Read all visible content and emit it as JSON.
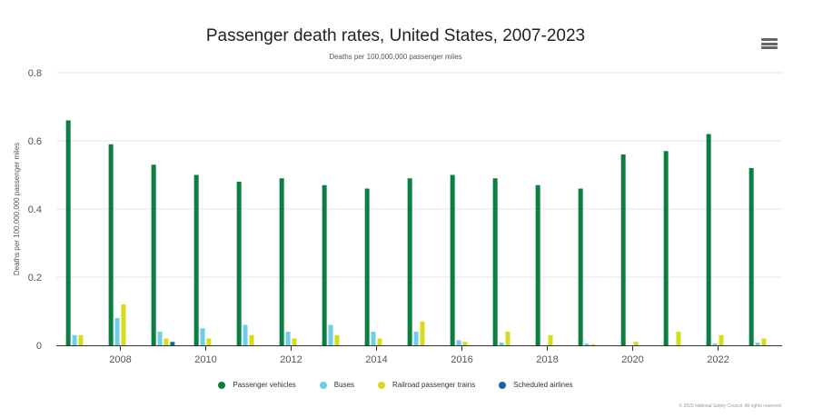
{
  "chart_data": {
    "type": "bar",
    "title": "Passenger death rates, United States, 2007-2023",
    "subtitle": "Deaths per 100,000,000 passenger miles",
    "ylabel": "Deaths per 100,000,000 passenger miles",
    "xlabel": "",
    "ylim": [
      0,
      0.8
    ],
    "y_ticks": [
      "0",
      "0.2",
      "0.4",
      "0.6",
      "0.8"
    ],
    "y_tick_values": [
      0,
      0.2,
      0.4,
      0.6,
      0.8
    ],
    "categories": [
      2007,
      2008,
      2009,
      2010,
      2011,
      2012,
      2013,
      2014,
      2015,
      2016,
      2017,
      2018,
      2019,
      2020,
      2021,
      2022,
      2023
    ],
    "x_tick_labels": [
      "2008",
      "2010",
      "2012",
      "2014",
      "2016",
      "2018",
      "2020",
      "2022"
    ],
    "series": [
      {
        "name": "Passenger vehicles",
        "color": "#0a7f3f",
        "values": [
          0.66,
          0.59,
          0.53,
          0.5,
          0.48,
          0.49,
          0.47,
          0.46,
          0.49,
          0.5,
          0.49,
          0.47,
          0.46,
          0.56,
          0.57,
          0.62,
          0.52
        ]
      },
      {
        "name": "Buses",
        "color": "#6fcde8",
        "values": [
          0.03,
          0.08,
          0.04,
          0.05,
          0.06,
          0.04,
          0.06,
          0.04,
          0.04,
          0.015,
          0.008,
          0,
          0.005,
          0,
          0,
          0.005,
          0.008
        ]
      },
      {
        "name": "Railroad passenger trains",
        "color": "#d4dc1c",
        "values": [
          0.03,
          0.12,
          0.02,
          0.02,
          0.03,
          0.02,
          0.03,
          0.02,
          0.07,
          0.01,
          0.04,
          0.03,
          0.003,
          0.01,
          0.04,
          0.03,
          0.02
        ]
      },
      {
        "name": "Scheduled airlines",
        "color": "#1565a8",
        "values": [
          0,
          0,
          0.01,
          0,
          0,
          0,
          0,
          0,
          0,
          0,
          0,
          0,
          0,
          0,
          0,
          0,
          0
        ]
      }
    ]
  },
  "menu": {
    "icon": "hamburger-menu-icon"
  },
  "credits": "© 2025 National Safety Council. All rights reserved."
}
